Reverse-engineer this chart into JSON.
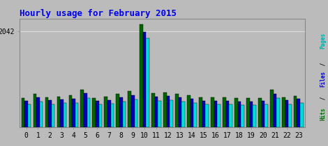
{
  "title": "Hourly usage for February 2015",
  "hours": [
    0,
    1,
    2,
    3,
    4,
    5,
    6,
    7,
    8,
    9,
    10,
    11,
    12,
    13,
    14,
    15,
    16,
    17,
    18,
    19,
    20,
    21,
    22,
    23
  ],
  "hits": [
    620,
    700,
    630,
    650,
    670,
    800,
    620,
    640,
    700,
    760,
    2180,
    720,
    740,
    700,
    670,
    630,
    630,
    630,
    610,
    610,
    620,
    790,
    630,
    660
  ],
  "files": [
    560,
    630,
    570,
    590,
    600,
    720,
    560,
    575,
    630,
    680,
    2020,
    645,
    660,
    625,
    595,
    565,
    562,
    560,
    545,
    548,
    557,
    710,
    570,
    595
  ],
  "pages": [
    490,
    545,
    490,
    510,
    515,
    620,
    480,
    497,
    545,
    590,
    1890,
    555,
    570,
    540,
    510,
    487,
    485,
    483,
    468,
    468,
    478,
    610,
    487,
    513
  ],
  "color_hits": "#006600",
  "color_files": "#0000BB",
  "color_pages": "#00DDDD",
  "ylim_max": 2300,
  "ytick_val": 2042,
  "ytick_label": "2042",
  "plot_bg": "#BBBBBB",
  "outer_bg": "#BBBBBB",
  "title_color": "#0000EE",
  "grid_color": "#DDDDDD",
  "bar_width": 0.27,
  "ylabel_pages_color": "#00AAAA",
  "ylabel_files_color": "#0000BB",
  "ylabel_hits_color": "#006600"
}
